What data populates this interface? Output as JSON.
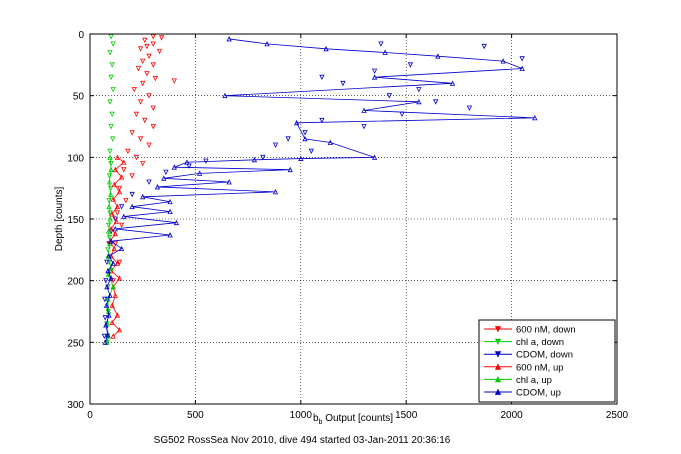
{
  "figure": {
    "caption": "SG502 RossSea Nov 2010, dive 494 started 03-Jan-2011 20:36:16"
  },
  "chart_data": {
    "type": "scatter",
    "xlabel_main": "b",
    "xlabel_sub": "b",
    "xlabel_rest": " Output [counts]",
    "ylabel": "Depth [counts]",
    "xlim": [
      0,
      2500
    ],
    "ylim": [
      0,
      300
    ],
    "y_reversed": true,
    "grid": true,
    "legend_position": "bottom-right",
    "xticks": [
      "0",
      "500",
      "1000",
      "1500",
      "2000",
      "2500"
    ],
    "yticks": [
      "0",
      "50",
      "100",
      "150",
      "200",
      "250",
      "300"
    ],
    "series": [
      {
        "name": "600 nM, down",
        "color": "#ff0000",
        "marker": "triangle-down",
        "line": false,
        "points": [
          [
            300,
            2
          ],
          [
            340,
            3
          ],
          [
            260,
            5
          ],
          [
            300,
            8
          ],
          [
            270,
            10
          ],
          [
            240,
            12
          ],
          [
            330,
            14
          ],
          [
            280,
            18
          ],
          [
            250,
            22
          ],
          [
            300,
            25
          ],
          [
            230,
            28
          ],
          [
            270,
            32
          ],
          [
            310,
            36
          ],
          [
            250,
            40
          ],
          [
            400,
            38
          ],
          [
            210,
            45
          ],
          [
            280,
            50
          ],
          [
            240,
            55
          ],
          [
            300,
            60
          ],
          [
            220,
            65
          ],
          [
            260,
            70
          ],
          [
            300,
            75
          ],
          [
            200,
            80
          ],
          [
            240,
            85
          ],
          [
            280,
            90
          ],
          [
            180,
            95
          ],
          [
            220,
            100
          ],
          [
            250,
            105
          ],
          [
            160,
            110
          ],
          [
            200,
            115
          ],
          [
            140,
            125
          ],
          [
            170,
            135
          ],
          [
            130,
            145
          ],
          [
            150,
            155
          ],
          [
            120,
            170
          ],
          [
            140,
            185
          ],
          [
            110,
            200
          ]
        ]
      },
      {
        "name": "chl a, down",
        "color": "#00cc00",
        "marker": "triangle-down",
        "line": false,
        "points": [
          [
            100,
            2
          ],
          [
            110,
            8
          ],
          [
            95,
            15
          ],
          [
            105,
            25
          ],
          [
            100,
            35
          ],
          [
            110,
            45
          ],
          [
            95,
            55
          ],
          [
            105,
            65
          ],
          [
            100,
            75
          ],
          [
            108,
            85
          ],
          [
            95,
            95
          ],
          [
            100,
            105
          ],
          [
            92,
            115
          ],
          [
            98,
            125
          ],
          [
            90,
            135
          ],
          [
            95,
            145
          ],
          [
            88,
            155
          ],
          [
            92,
            165
          ],
          [
            85,
            175
          ],
          [
            90,
            185
          ],
          [
            88,
            195
          ],
          [
            85,
            205
          ],
          [
            82,
            215
          ],
          [
            86,
            225
          ],
          [
            80,
            235
          ],
          [
            84,
            245
          ],
          [
            80,
            250
          ]
        ]
      },
      {
        "name": "CDOM, down",
        "color": "#0000cc",
        "marker": "triangle-down",
        "line": false,
        "points": [
          [
            1380,
            8
          ],
          [
            1870,
            10
          ],
          [
            2050,
            20
          ],
          [
            1520,
            25
          ],
          [
            1350,
            30
          ],
          [
            1100,
            35
          ],
          [
            1200,
            40
          ],
          [
            1560,
            45
          ],
          [
            1420,
            50
          ],
          [
            1640,
            55
          ],
          [
            1800,
            60
          ],
          [
            1480,
            65
          ],
          [
            1100,
            70
          ],
          [
            1300,
            75
          ],
          [
            1020,
            80
          ],
          [
            940,
            85
          ],
          [
            880,
            90
          ],
          [
            1050,
            95
          ],
          [
            820,
            100
          ],
          [
            550,
            103
          ],
          [
            470,
            107
          ],
          [
            360,
            112
          ],
          [
            280,
            120
          ],
          [
            200,
            130
          ],
          [
            150,
            140
          ],
          [
            120,
            150
          ],
          [
            100,
            160
          ],
          [
            90,
            170
          ],
          [
            80,
            185
          ],
          [
            75,
            200
          ],
          [
            70,
            215
          ],
          [
            72,
            230
          ],
          [
            68,
            245
          ]
        ]
      },
      {
        "name": "600 nM, up",
        "color": "#ff0000",
        "marker": "triangle-up",
        "line": true,
        "points": [
          [
            130,
            100
          ],
          [
            160,
            104
          ],
          [
            120,
            110
          ],
          [
            150,
            116
          ],
          [
            115,
            122
          ],
          [
            140,
            128
          ],
          [
            110,
            134
          ],
          [
            130,
            140
          ],
          [
            105,
            146
          ],
          [
            125,
            152
          ],
          [
            100,
            158
          ],
          [
            120,
            162
          ],
          [
            95,
            168
          ],
          [
            115,
            174
          ],
          [
            100,
            180
          ],
          [
            130,
            186
          ],
          [
            100,
            192
          ],
          [
            140,
            198
          ],
          [
            110,
            205
          ],
          [
            120,
            212
          ],
          [
            105,
            220
          ],
          [
            130,
            228
          ],
          [
            105,
            234
          ],
          [
            140,
            240
          ],
          [
            110,
            245
          ]
        ]
      },
      {
        "name": "chl a, up",
        "color": "#00cc00",
        "marker": "triangle-up",
        "line": true,
        "points": [
          [
            95,
            100
          ],
          [
            100,
            110
          ],
          [
            92,
            120
          ],
          [
            98,
            130
          ],
          [
            90,
            140
          ],
          [
            96,
            150
          ],
          [
            88,
            160
          ],
          [
            94,
            170
          ],
          [
            86,
            180
          ],
          [
            100,
            190
          ],
          [
            88,
            195
          ],
          [
            110,
            205
          ],
          [
            85,
            215
          ],
          [
            88,
            225
          ],
          [
            82,
            235
          ],
          [
            86,
            245
          ],
          [
            80,
            250
          ]
        ]
      },
      {
        "name": "CDOM, up",
        "color": "#0000cc",
        "marker": "triangle-up",
        "line": true,
        "points": [
          [
            660,
            4
          ],
          [
            840,
            8
          ],
          [
            1120,
            12
          ],
          [
            1400,
            15
          ],
          [
            1650,
            18
          ],
          [
            1960,
            22
          ],
          [
            2050,
            28
          ],
          [
            1350,
            35
          ],
          [
            1720,
            40
          ],
          [
            640,
            50
          ],
          [
            1560,
            55
          ],
          [
            1300,
            62
          ],
          [
            2110,
            68
          ],
          [
            980,
            72
          ],
          [
            1020,
            85
          ],
          [
            1140,
            88
          ],
          [
            1350,
            100
          ],
          [
            1000,
            101
          ],
          [
            780,
            102
          ],
          [
            460,
            104
          ],
          [
            400,
            108
          ],
          [
            950,
            110
          ],
          [
            520,
            113
          ],
          [
            350,
            117
          ],
          [
            660,
            120
          ],
          [
            320,
            124
          ],
          [
            880,
            128
          ],
          [
            250,
            132
          ],
          [
            380,
            136
          ],
          [
            200,
            140
          ],
          [
            380,
            144
          ],
          [
            160,
            148
          ],
          [
            410,
            153
          ],
          [
            120,
            158
          ],
          [
            380,
            163
          ],
          [
            100,
            168
          ],
          [
            150,
            174
          ],
          [
            90,
            180
          ],
          [
            110,
            186
          ],
          [
            85,
            192
          ],
          [
            100,
            198
          ],
          [
            80,
            205
          ],
          [
            95,
            212
          ],
          [
            78,
            220
          ],
          [
            90,
            228
          ],
          [
            75,
            236
          ],
          [
            85,
            244
          ],
          [
            72,
            250
          ]
        ]
      }
    ]
  }
}
